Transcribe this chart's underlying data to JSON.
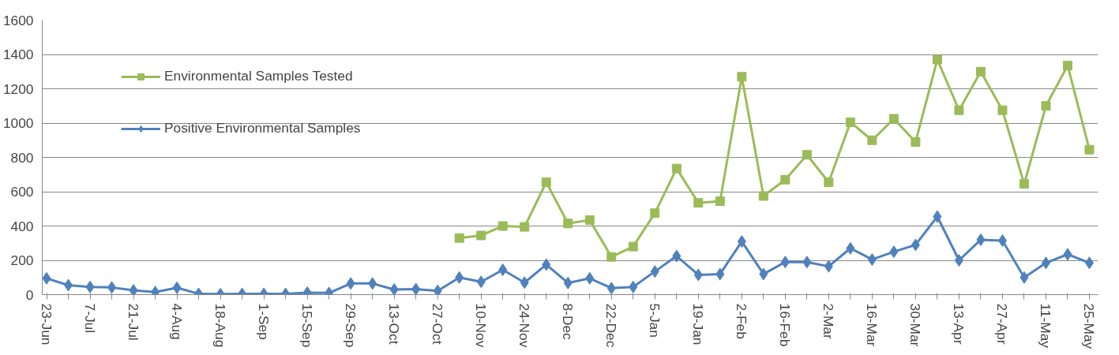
{
  "chart_data": {
    "type": "line",
    "categories": [
      "23-Jun",
      null,
      "7-Jul",
      null,
      "21-Jul",
      null,
      "4-Aug",
      null,
      "18-Aug",
      null,
      "1-Sep",
      null,
      "15-Sep",
      null,
      "29-Sep",
      null,
      "13-Oct",
      null,
      "27-Oct",
      null,
      "10-Nov",
      null,
      "24-Nov",
      null,
      "8-Dec",
      null,
      "22-Dec",
      null,
      "5-Jan",
      null,
      "19-Jan",
      null,
      "2-Feb",
      null,
      "16-Feb",
      null,
      "2-Mar",
      null,
      "16-Mar",
      null,
      "30-Mar",
      null,
      "13-Apr",
      null,
      "27-Apr",
      null,
      "11-May",
      null,
      "25-May"
    ],
    "series": [
      {
        "name": "Environmental Samples Tested",
        "color": "#9bbb59",
        "marker": "square",
        "values": [
          null,
          null,
          null,
          null,
          null,
          null,
          null,
          null,
          null,
          null,
          null,
          null,
          null,
          null,
          null,
          null,
          null,
          null,
          null,
          330,
          345,
          400,
          395,
          655,
          415,
          435,
          220,
          280,
          475,
          735,
          535,
          545,
          1270,
          575,
          670,
          815,
          655,
          1005,
          900,
          1025,
          890,
          1370,
          1075,
          1300,
          1075,
          645,
          1100,
          1335,
          845
        ]
      },
      {
        "name": "Positive Environmental Samples",
        "color": "#4f81bd",
        "marker": "diamond",
        "values": [
          95,
          55,
          45,
          42,
          25,
          15,
          40,
          5,
          3,
          5,
          5,
          5,
          12,
          10,
          65,
          65,
          30,
          32,
          22,
          100,
          75,
          145,
          70,
          175,
          68,
          95,
          38,
          45,
          135,
          225,
          115,
          120,
          310,
          120,
          190,
          190,
          165,
          270,
          205,
          250,
          290,
          455,
          200,
          320,
          315,
          100,
          185,
          235,
          185
        ]
      }
    ],
    "ylim": [
      0,
      1600
    ],
    "yticks": [
      0,
      200,
      400,
      600,
      800,
      1000,
      1200,
      1400,
      1600
    ],
    "grid": "y",
    "legend": "top left",
    "line_style": "solid"
  }
}
